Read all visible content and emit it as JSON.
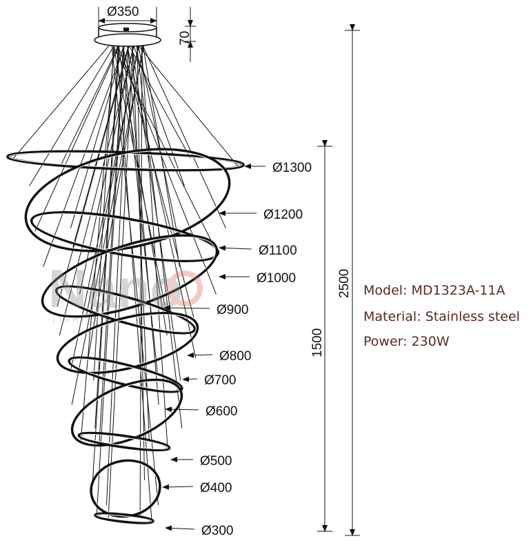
{
  "dimensions": {
    "canopy_diameter": "Ø350",
    "canopy_height": "70",
    "overall_height": "2500",
    "ring_stack_height": "1500"
  },
  "rings": [
    {
      "label": "Ø1300"
    },
    {
      "label": "Ø1200"
    },
    {
      "label": "Ø1100"
    },
    {
      "label": "Ø1000"
    },
    {
      "label": "Ø900"
    },
    {
      "label": "Ø800"
    },
    {
      "label": "Ø700"
    },
    {
      "label": "Ø600"
    },
    {
      "label": "Ø500"
    },
    {
      "label": "Ø400"
    },
    {
      "label": "Ø300"
    }
  ],
  "specs": {
    "model": "Model: MD1323A-11A",
    "material": "Material: Stainless steel",
    "power": "Power: 230W"
  },
  "watermark": {
    "wordmark": "Nano",
    "tagline": "L I G H T I N G",
    "accent_color": "#d9705a"
  },
  "colors": {
    "line": "#111111",
    "spec_text": "#5a2a22"
  }
}
